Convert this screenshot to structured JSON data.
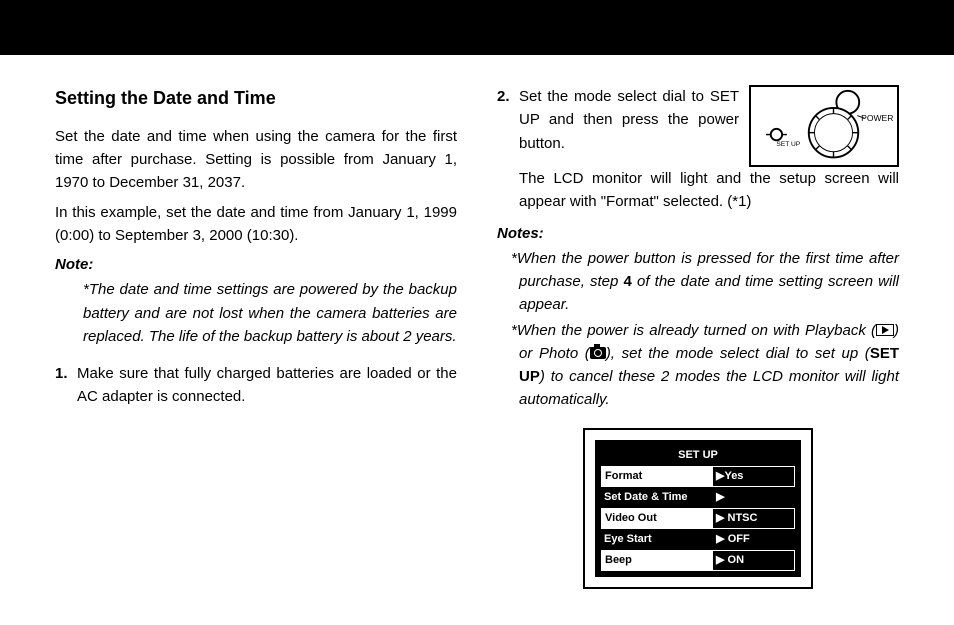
{
  "left": {
    "heading": "Setting the Date and Time",
    "p1": "Set the date and time when using the camera for the first time after purchase. Setting is possible from January 1, 1970 to December 31, 2037.",
    "p2": "In this example, set the date and time from Janu­ary 1, 1999 (0:00) to September 3, 2000 (10:30).",
    "note_label": "Note:",
    "note_body": "*The date and time settings are powered by the backup battery and are not lost when the cam­era batteries are replaced. The life of the backup battery is about 2 years.",
    "step1_num": "1.",
    "step1_body": "Make sure that fully charged batteries are loaded or the AC adapter is connected."
  },
  "right": {
    "step2_num": "2.",
    "step2_a": "Set the mode select dial to SET UP and then press the power button.",
    "step2_b": "The LCD monitor will light and the setup screen will appear with \"Format\" selected. (*1)",
    "dial_label_power": "POWER",
    "dial_label_setup": "SET UP",
    "notes_label": "Notes:",
    "note1_a": "*When the power button is pressed for the first time after purchase, step ",
    "note1_bold": "4",
    "note1_b": " of the date and time setting screen will appear.",
    "note2_a": "*When the power is already turned on with Playback (",
    "note2_b": ") or Photo (",
    "note2_c": "), set the mode select dial to set up (",
    "note2_setup": "SET UP",
    "note2_d": ") to cancel these 2 modes the LCD monitor will light automatically."
  },
  "lcd": {
    "title": "SET UP",
    "rows": [
      {
        "l": "Format",
        "r": "▶Yes",
        "sel": true
      },
      {
        "l": "Set Date & Time",
        "r": "▶",
        "sel": false
      },
      {
        "l": "Video Out",
        "r": "▶ NTSC",
        "sel": true
      },
      {
        "l": "Eye Start",
        "r": "▶ OFF",
        "sel": false
      },
      {
        "l": "Beep",
        "r": "▶ ON",
        "sel": true
      }
    ]
  }
}
